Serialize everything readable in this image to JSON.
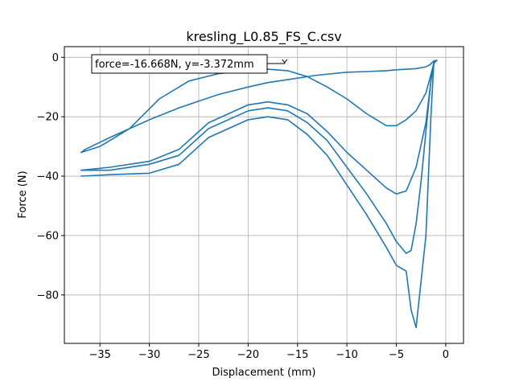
{
  "chart_data": {
    "type": "line",
    "title": "kresling_L0.85_FS_C.csv",
    "xlabel": "Displacement (mm)",
    "ylabel": "Force (N)",
    "xlim": [
      -38.6,
      1.8
    ],
    "ylim": [
      -96.3,
      3.6
    ],
    "x_ticks": [
      -35,
      -30,
      -25,
      -20,
      -15,
      -10,
      -5,
      0
    ],
    "x_tick_labels": [
      "−35",
      "−30",
      "−25",
      "−20",
      "−15",
      "−10",
      "−5",
      "0"
    ],
    "y_ticks": [
      0,
      -20,
      -40,
      -60,
      -80
    ],
    "y_tick_labels": [
      "0",
      "−20",
      "−40",
      "−60",
      "−80"
    ],
    "grid": true,
    "line_color": "#1f77b4",
    "annotation": {
      "text": "force=-16.668N, y=-3.372mm",
      "target": [
        -16.3,
        -1.8
      ]
    },
    "series": [
      {
        "x": [
          -36.9,
          -36.5,
          -34,
          -30,
          -27,
          -23,
          -20,
          -18,
          -15,
          -13,
          -10,
          -8,
          -6,
          -5,
          -4,
          -3,
          -2,
          -1.6,
          -1.2,
          -0.9
        ],
        "y": [
          -32,
          -31,
          -27,
          -21,
          -17,
          -12.5,
          -10,
          -8.5,
          -7,
          -6,
          -5,
          -4.8,
          -4.5,
          -4.2,
          -4.0,
          -3.8,
          -3.2,
          -2.5,
          -1.2,
          -1.0
        ]
      },
      {
        "x": [
          -0.9,
          -1.2,
          -1.6,
          -2,
          -3,
          -4,
          -5,
          -6,
          -7,
          -8,
          -10,
          -12,
          -14,
          -16,
          -18,
          -20,
          -23,
          -26,
          -29,
          -32,
          -35,
          -36.9
        ],
        "y": [
          -1.0,
          -2.0,
          -7,
          -12,
          -18,
          -21,
          -23,
          -23,
          -21,
          -19,
          -14,
          -10,
          -6.5,
          -4.5,
          -4,
          -4.5,
          -5.5,
          -8,
          -14,
          -24,
          -30,
          -32
        ]
      },
      {
        "x": [
          -36.9,
          -34,
          -30,
          -27,
          -24,
          -20,
          -18,
          -16,
          -14,
          -12,
          -10,
          -8,
          -6,
          -5,
          -4,
          -3,
          -2,
          -1.5,
          -1.2
        ],
        "y": [
          -38,
          -37,
          -35,
          -31,
          -22,
          -16,
          -15,
          -16,
          -19,
          -25,
          -32,
          -38,
          -44,
          -46,
          -45,
          -37,
          -22,
          -8,
          -1.5
        ]
      },
      {
        "x": [
          -36.9,
          -34,
          -30,
          -27,
          -24,
          -20,
          -18,
          -16,
          -14,
          -12,
          -10,
          -8,
          -6,
          -5,
          -4,
          -3.5,
          -3,
          -2,
          -1.5,
          -1.2
        ],
        "y": [
          -40,
          -39.5,
          -39,
          -36,
          -27,
          -21,
          -20,
          -21,
          -26,
          -33,
          -43,
          -53,
          -64,
          -70,
          -72,
          -85,
          -91,
          -60,
          -20,
          -1.5
        ]
      },
      {
        "x": [
          -36.9,
          -34,
          -30,
          -27,
          -24,
          -20,
          -18,
          -16,
          -14,
          -12,
          -10,
          -8,
          -6,
          -5,
          -4,
          -3.5,
          -3,
          -2.5,
          -2,
          -1.5,
          -1.2
        ],
        "y": [
          -38,
          -38,
          -36,
          -33,
          -24,
          -18,
          -17,
          -18,
          -22,
          -28,
          -37,
          -46,
          -56,
          -62,
          -66,
          -65,
          -56,
          -42,
          -25,
          -8,
          -1.5
        ]
      }
    ]
  }
}
